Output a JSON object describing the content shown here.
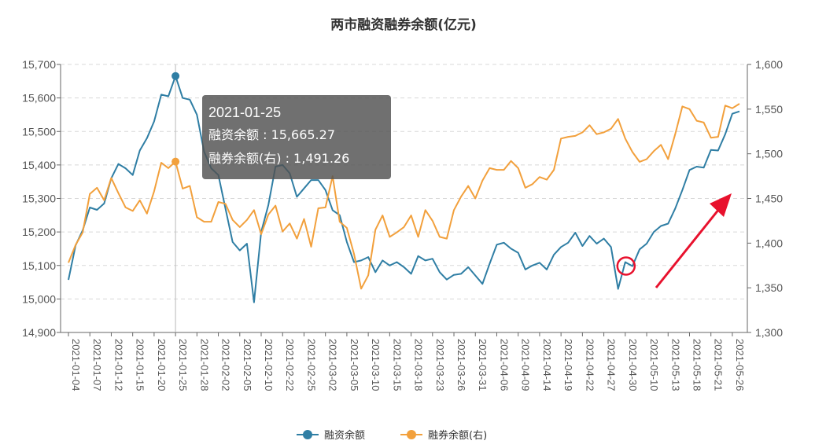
{
  "chart_data": {
    "type": "line",
    "title": "两市融资融券余额(亿元)",
    "x": [
      "2021-01-04",
      "2021-01-05",
      "2021-01-06",
      "2021-01-07",
      "2021-01-08",
      "2021-01-11",
      "2021-01-12",
      "2021-01-13",
      "2021-01-14",
      "2021-01-15",
      "2021-01-18",
      "2021-01-19",
      "2021-01-20",
      "2021-01-21",
      "2021-01-22",
      "2021-01-25",
      "2021-01-26",
      "2021-01-27",
      "2021-01-28",
      "2021-01-29",
      "2021-02-01",
      "2021-02-02",
      "2021-02-03",
      "2021-02-04",
      "2021-02-05",
      "2021-02-08",
      "2021-02-09",
      "2021-02-10",
      "2021-02-18",
      "2021-02-19",
      "2021-02-22",
      "2021-02-23",
      "2021-02-24",
      "2021-02-25",
      "2021-02-26",
      "2021-03-01",
      "2021-03-02",
      "2021-03-03",
      "2021-03-04",
      "2021-03-05",
      "2021-03-08",
      "2021-03-09",
      "2021-03-10",
      "2021-03-11",
      "2021-03-12",
      "2021-03-15",
      "2021-03-16",
      "2021-03-17",
      "2021-03-18",
      "2021-03-19",
      "2021-03-22",
      "2021-03-23",
      "2021-03-24",
      "2021-03-25",
      "2021-03-26",
      "2021-03-29",
      "2021-03-30",
      "2021-03-31",
      "2021-04-01",
      "2021-04-02",
      "2021-04-06",
      "2021-04-07",
      "2021-04-08",
      "2021-04-09",
      "2021-04-12",
      "2021-04-13",
      "2021-04-14",
      "2021-04-15",
      "2021-04-16",
      "2021-04-19",
      "2021-04-20",
      "2021-04-21",
      "2021-04-22",
      "2021-04-23",
      "2021-04-26",
      "2021-04-27",
      "2021-04-28",
      "2021-04-29",
      "2021-04-30",
      "2021-05-06",
      "2021-05-07",
      "2021-05-10",
      "2021-05-11",
      "2021-05-12",
      "2021-05-13",
      "2021-05-14",
      "2021-05-17",
      "2021-05-18",
      "2021-05-19",
      "2021-05-20",
      "2021-05-21",
      "2021-05-24",
      "2021-05-25",
      "2021-05-26",
      "2021-05-27"
    ],
    "xtick_labels": [
      "2021-01-04",
      "2021-01-07",
      "2021-01-12",
      "2021-01-15",
      "2021-01-20",
      "2021-01-25",
      "2021-01-28",
      "2021-02-02",
      "2021-02-05",
      "2021-02-10",
      "2021-02-22",
      "2021-02-25",
      "2021-03-02",
      "2021-03-05",
      "2021-03-10",
      "2021-03-15",
      "2021-03-18",
      "2021-03-23",
      "2021-03-26",
      "2021-03-31",
      "2021-04-06",
      "2021-04-09",
      "2021-04-14",
      "2021-04-19",
      "2021-04-22",
      "2021-04-27",
      "2021-04-30",
      "2021-05-10",
      "2021-05-13",
      "2021-05-18",
      "2021-05-21",
      "2021-05-26"
    ],
    "series": [
      {
        "name": "融资余额",
        "axis": "left",
        "color": "#2f7ea4",
        "values": [
          15057,
          15160,
          15205,
          15273,
          15266,
          15285,
          15360,
          15403,
          15390,
          15370,
          15443,
          15480,
          15530,
          15610,
          15605,
          15665.27,
          15600,
          15595,
          15550,
          15440,
          15390,
          15370,
          15270,
          15170,
          15145,
          15165,
          14990,
          15200,
          15280,
          15395,
          15400,
          15375,
          15305,
          15330,
          15355,
          15355,
          15325,
          15265,
          15250,
          15170,
          15110,
          15115,
          15125,
          15080,
          15115,
          15100,
          15110,
          15095,
          15075,
          15128,
          15115,
          15120,
          15080,
          15058,
          15072,
          15075,
          15095,
          15070,
          15045,
          15105,
          15162,
          15168,
          15150,
          15138,
          15088,
          15100,
          15108,
          15088,
          15132,
          15155,
          15168,
          15198,
          15158,
          15188,
          15165,
          15180,
          15155,
          15030,
          15110,
          15098,
          15148,
          15165,
          15200,
          15218,
          15225,
          15270,
          15325,
          15385,
          15395,
          15392,
          15445,
          15443,
          15492,
          15553,
          15560
        ]
      },
      {
        "name": "融券余额(右)",
        "axis": "right",
        "color": "#f2a03c",
        "values": [
          1378,
          1398,
          1412,
          1455,
          1462,
          1448,
          1473,
          1456,
          1440,
          1436,
          1448,
          1433,
          1458,
          1490,
          1484,
          1491.26,
          1461,
          1464,
          1429,
          1424,
          1424,
          1446,
          1444,
          1426,
          1418,
          1426,
          1437,
          1410,
          1432,
          1442,
          1413,
          1422,
          1405,
          1427,
          1396,
          1439,
          1440,
          1475,
          1424,
          1417,
          1388,
          1349,
          1364,
          1415,
          1431,
          1407,
          1412,
          1418,
          1431,
          1407,
          1437,
          1425,
          1407,
          1405,
          1437,
          1452,
          1464,
          1450,
          1470,
          1484,
          1482,
          1482,
          1492,
          1484,
          1462,
          1466,
          1474,
          1471,
          1482,
          1517,
          1519,
          1520,
          1524,
          1532,
          1522,
          1524,
          1528,
          1539,
          1517,
          1502,
          1491,
          1494,
          1503,
          1510,
          1494,
          1522,
          1553,
          1550,
          1537,
          1535,
          1518,
          1519,
          1554,
          1551,
          1556
        ]
      }
    ],
    "ylim_left": [
      14900,
      15700
    ],
    "yticks_left": [
      "14,900",
      "15,000",
      "15,100",
      "15,200",
      "15,300",
      "15,400",
      "15,500",
      "15,600",
      "15,700"
    ],
    "ylim_right": [
      1300,
      1600
    ],
    "yticks_right": [
      "1,300",
      "1,350",
      "1,400",
      "1,450",
      "1,500",
      "1,550",
      "1,600"
    ],
    "grid": true,
    "legend_position": "bottom-center",
    "tooltip": {
      "date": "2021-01-25",
      "line1": "融资余额 : 15,665.27",
      "line2": "融券余额(右) : 1,491.26"
    },
    "annotation_colors": {
      "circle": "#e8112d",
      "arrow": "#e8112d"
    }
  }
}
